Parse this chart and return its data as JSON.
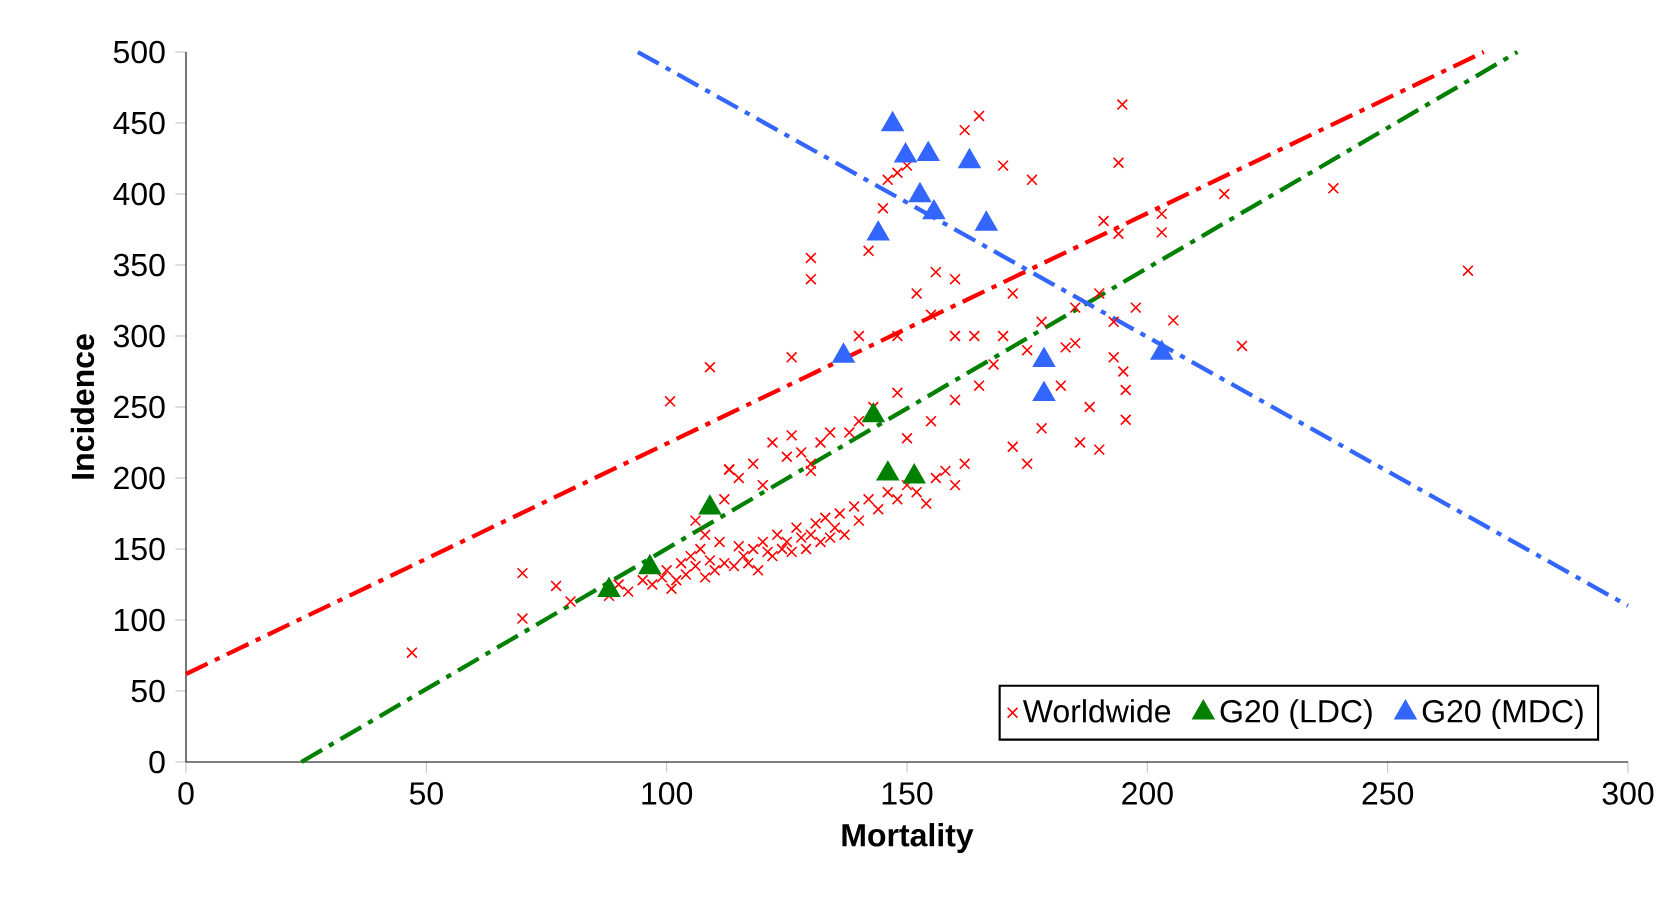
{
  "chart_data": {
    "type": "scatter",
    "xlabel": "Mortality",
    "ylabel": "Incidence",
    "xlim": [
      0,
      300
    ],
    "ylim": [
      0,
      500
    ],
    "xticks": [
      0,
      50,
      100,
      150,
      200,
      250,
      300
    ],
    "yticks": [
      0,
      50,
      100,
      150,
      200,
      250,
      300,
      350,
      400,
      450,
      500
    ],
    "grid": false,
    "legend": "bottom right",
    "series": [
      {
        "name": "Worldwide",
        "marker": "cross",
        "color": "#ff0000",
        "x": [
          47,
          70,
          70,
          77,
          80,
          100.7,
          109,
          88,
          90,
          92,
          95,
          97,
          99,
          100,
          101,
          102,
          103,
          104,
          105,
          106,
          107,
          108,
          108,
          109,
          110,
          111,
          112,
          113,
          114,
          115,
          116,
          117,
          118,
          119,
          120,
          121,
          122,
          123,
          124,
          125,
          126,
          127,
          128,
          129,
          130,
          131,
          132,
          133,
          134,
          135,
          136,
          137,
          139,
          140,
          142,
          144,
          146,
          148,
          150,
          152,
          154,
          156,
          158,
          160,
          162,
          106,
          112,
          113,
          115,
          118,
          120,
          122,
          125,
          126,
          128,
          130,
          132,
          134,
          130,
          138,
          140,
          143,
          148,
          150,
          155,
          160,
          165,
          168,
          170,
          175,
          172,
          175,
          178,
          182,
          185,
          188,
          190,
          185,
          190,
          193,
          195,
          194.8,
          194,
          216,
          238.7,
          266.7,
          203,
          203,
          194,
          190.9,
          197.6,
          193,
          205.4,
          219.7,
          195.5,
          195.5,
          178,
          172,
          164,
          160,
          156,
          152,
          148,
          142,
          146,
          148,
          145,
          150,
          165,
          170,
          162,
          176,
          126,
          130,
          130,
          140,
          155,
          160,
          183,
          186
        ],
        "values": [
          77,
          133,
          101,
          124,
          113,
          254,
          278,
          117,
          125,
          120,
          128,
          125,
          130,
          135,
          122,
          128,
          140,
          132,
          145,
          138,
          150,
          130,
          160,
          142,
          135,
          155,
          140,
          206,
          138,
          152,
          145,
          140,
          150,
          135,
          155,
          148,
          145,
          160,
          150,
          155,
          148,
          165,
          158,
          150,
          160,
          168,
          155,
          172,
          158,
          165,
          175,
          160,
          180,
          170,
          185,
          178,
          190,
          185,
          195,
          190,
          182,
          200,
          205,
          195,
          210,
          170,
          185,
          206,
          200,
          210,
          195,
          225,
          215,
          230,
          218,
          210,
          225,
          232,
          205,
          232,
          240,
          250,
          260,
          228,
          240,
          255,
          265,
          280,
          300,
          290,
          222,
          210,
          235,
          265,
          295,
          250,
          220,
          320,
          330,
          285,
          275,
          463,
          422,
          400,
          404,
          346,
          386,
          373,
          372,
          381,
          320,
          310,
          311,
          293,
          262,
          241,
          310,
          330,
          300,
          340,
          345,
          330,
          300,
          360,
          410,
          415,
          390,
          420,
          455,
          420,
          445,
          410,
          285,
          340,
          355,
          300,
          315,
          300,
          292,
          225
        ]
      },
      {
        "name": "G20 (LDC)",
        "marker": "triangle",
        "color": "#008000",
        "x": [
          88,
          96.5,
          109,
          143,
          146,
          151.5
        ],
        "values": [
          121,
          137,
          179,
          244,
          203,
          201
        ]
      },
      {
        "name": "G20 (MDC)",
        "marker": "triangle",
        "color": "#3366ff",
        "x": [
          147,
          149.7,
          154.4,
          163,
          152.7,
          155.6,
          144,
          166.5,
          136.8,
          178.5,
          178.5,
          203
        ],
        "values": [
          449,
          427,
          428,
          423,
          399,
          387,
          372,
          379,
          286,
          283,
          259,
          288
        ]
      },
      {
        "type": "line",
        "line_style": "dashdot",
        "color": "#ff0000",
        "x": [
          0,
          270
        ],
        "values": [
          62,
          500
        ]
      },
      {
        "type": "line",
        "line_style": "dashdot",
        "color": "#008000",
        "x": [
          24,
          277
        ],
        "values": [
          0,
          500
        ]
      },
      {
        "type": "line",
        "line_style": "dashdot",
        "color": "#3366ff",
        "x": [
          94,
          300
        ],
        "values": [
          500,
          110
        ]
      }
    ]
  }
}
